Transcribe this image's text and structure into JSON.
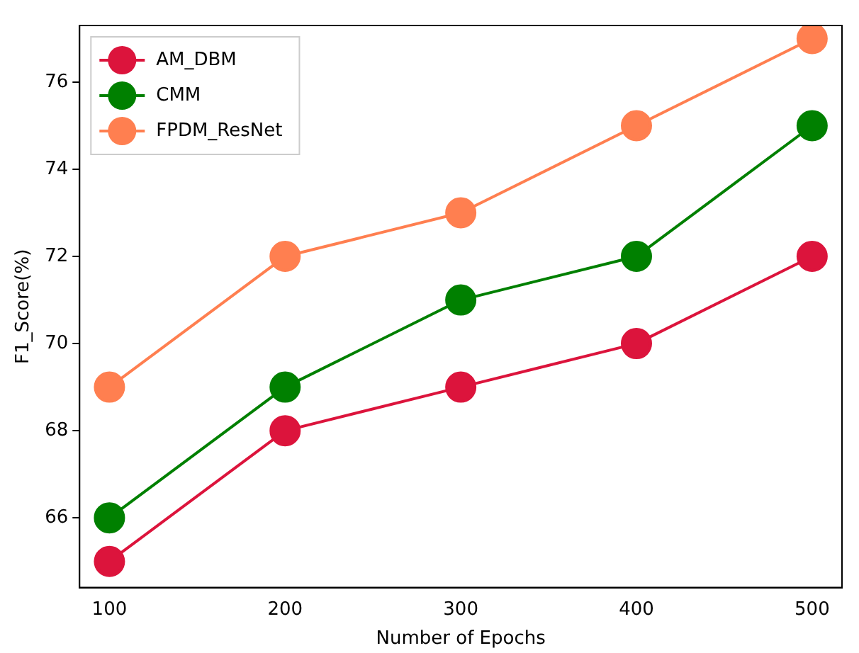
{
  "chart_data": {
    "type": "line",
    "xlabel": "Number of Epochs",
    "ylabel": "F1_Score(%)",
    "x": [
      100,
      200,
      300,
      400,
      500
    ],
    "series": [
      {
        "name": "AM_DBM",
        "color": "#dc143c",
        "values": [
          65,
          68,
          69,
          70,
          72
        ]
      },
      {
        "name": "CMM",
        "color": "#008000",
        "values": [
          66,
          69,
          71,
          72,
          75
        ]
      },
      {
        "name": "FPDM_ResNet",
        "color": "#ff7f50",
        "values": [
          69,
          72,
          73,
          75,
          77
        ]
      }
    ],
    "xlim": [
      83,
      517
    ],
    "xticks": [
      100,
      200,
      300,
      400,
      500
    ],
    "ylim": [
      64.4,
      77.3
    ],
    "yticks": [
      66,
      68,
      70,
      72,
      74,
      76
    ],
    "grid": false,
    "legend": "top left",
    "marker": "circle",
    "line_style": "solid"
  }
}
